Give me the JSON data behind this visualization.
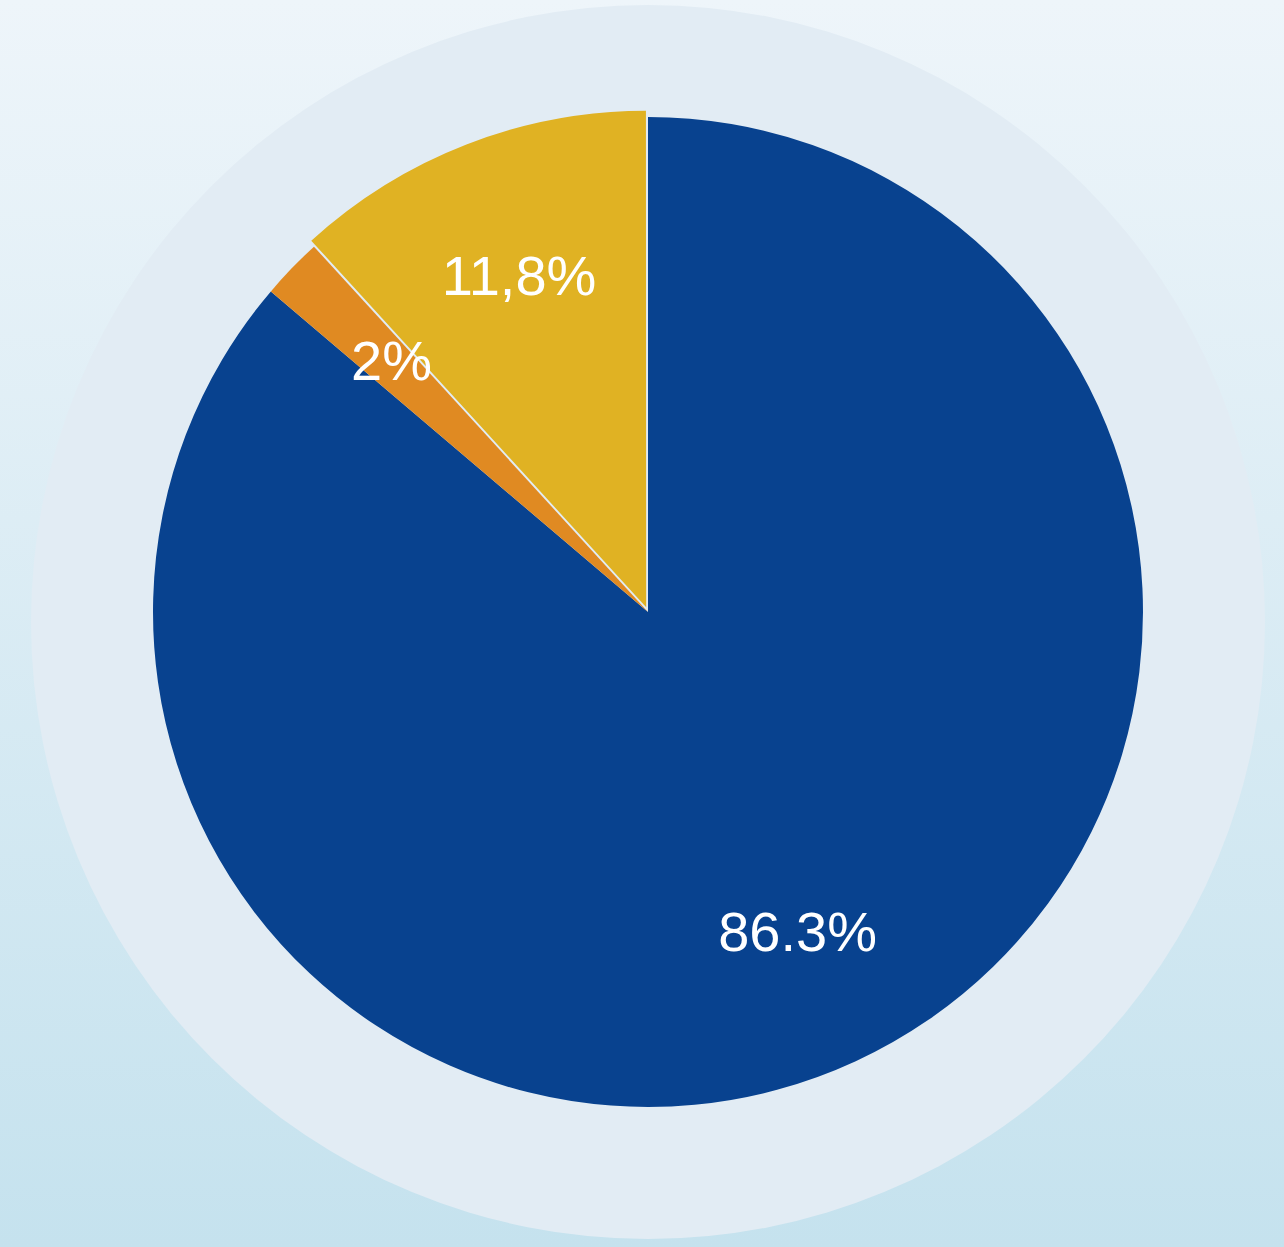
{
  "chart_data": {
    "type": "pie",
    "categories": [
      null,
      null,
      null
    ],
    "values": [
      86.3,
      2,
      11.8
    ],
    "colors": [
      "#08428f",
      "#e08a22",
      "#e0b223"
    ],
    "value_labels": [
      "86.3%",
      "2%",
      "11,8%"
    ]
  }
}
